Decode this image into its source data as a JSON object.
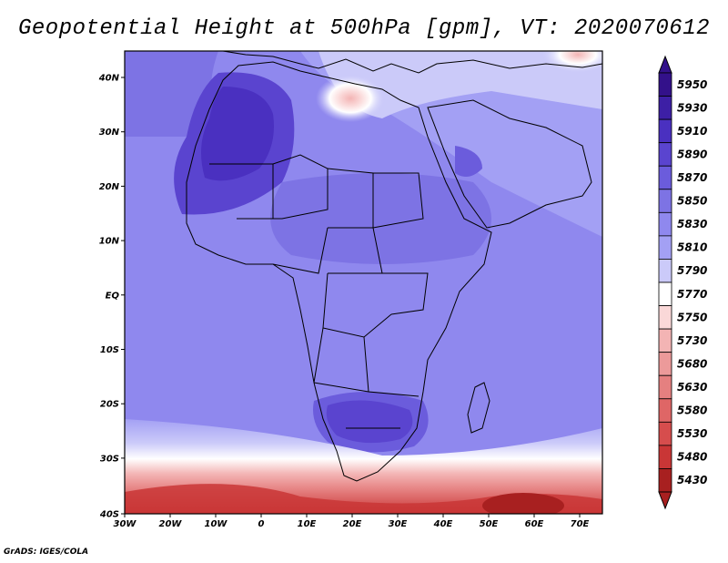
{
  "title": "Geopotential Height at 500hPa [gpm], VT: 2020070612",
  "credit": "GrADS: IGES/COLA",
  "axes": {
    "lat_labels": [
      "40N",
      "30N",
      "20N",
      "10N",
      "EQ",
      "10S",
      "20S",
      "30S",
      "40S"
    ],
    "lon_labels": [
      "30W",
      "20W",
      "10W",
      "0",
      "10E",
      "20E",
      "30E",
      "40E",
      "50E",
      "60E",
      "70E"
    ]
  },
  "colorbar": {
    "levels": [
      "5950",
      "5930",
      "5910",
      "5890",
      "5870",
      "5850",
      "5830",
      "5810",
      "5790",
      "5770",
      "5750",
      "5730",
      "5680",
      "5630",
      "5580",
      "5530",
      "5480",
      "5430"
    ],
    "colors": [
      "#33118a",
      "#3d1fa5",
      "#4a30c0",
      "#5a44cf",
      "#6b5cdc",
      "#7d73e4",
      "#8f88ee",
      "#a3a0f4",
      "#cbcaf9",
      "#ffffff",
      "#fad8d8",
      "#f3b4b4",
      "#ec9a9a",
      "#e58080",
      "#df6666",
      "#d64d4d",
      "#c93636",
      "#a82020"
    ]
  },
  "palette": {
    "ocean_default": "#8f88ee",
    "sahara_high": "#4a30c0",
    "med_low": "#fad8d8",
    "south_low": "#c93636",
    "border": "#000000"
  }
}
